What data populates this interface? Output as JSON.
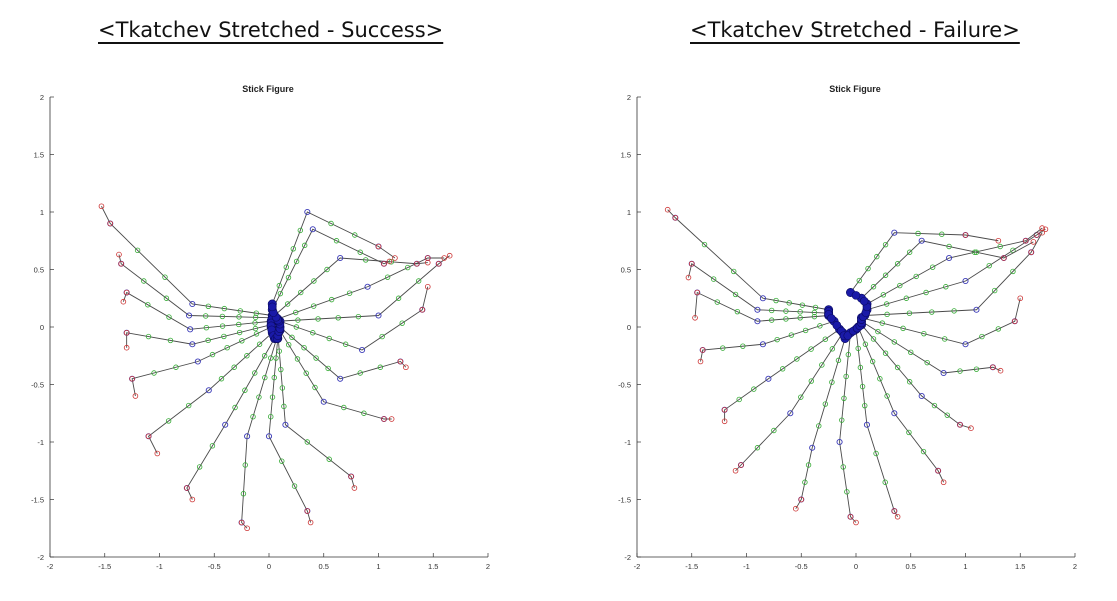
{
  "headings": {
    "left": "<Tkatchev Stretched - Success>",
    "right": "<Tkatchev Stretched - Failure>"
  },
  "colors": {
    "limb_line": "#4a4a4a",
    "head_nodes": "#cc3333",
    "joint_nodes": "#3a3ab8",
    "mid_nodes": "#33aa33",
    "center_fill": "#1a1aa8",
    "axis": "#333333"
  },
  "chart_data": [
    {
      "type": "scatter",
      "title": "Stick Figure",
      "xlabel": "",
      "ylabel": "",
      "xlim": [
        -2,
        2
      ],
      "ylim": [
        -2,
        2
      ],
      "xticks": [
        "-2",
        "-1.5",
        "-1",
        "-0.5",
        "0",
        "0.5",
        "1",
        "1.5",
        "2"
      ],
      "yticks": [
        "2",
        "1.5",
        "1",
        "0.5",
        "0",
        "-0.5",
        "-1",
        "-1.5",
        "-2"
      ],
      "grid": false,
      "frames": [
        [
          [
            0.03,
            0.1
          ],
          [
            -0.7,
            0.2
          ],
          [
            -1.45,
            0.9
          ],
          [
            -1.53,
            1.05
          ]
        ],
        [
          [
            0.03,
            0.08
          ],
          [
            -0.73,
            0.1
          ],
          [
            -1.35,
            0.55
          ],
          [
            -1.37,
            0.63
          ]
        ],
        [
          [
            0.02,
            0.05
          ],
          [
            -0.72,
            -0.02
          ],
          [
            -1.3,
            0.3
          ],
          [
            -1.33,
            0.22
          ]
        ],
        [
          [
            0.02,
            0.02
          ],
          [
            -0.7,
            -0.15
          ],
          [
            -1.3,
            -0.05
          ],
          [
            -1.3,
            -0.18
          ]
        ],
        [
          [
            0.02,
            0.0
          ],
          [
            -0.65,
            -0.3
          ],
          [
            -1.25,
            -0.45
          ],
          [
            -1.22,
            -0.6
          ]
        ],
        [
          [
            0.03,
            -0.05
          ],
          [
            -0.55,
            -0.55
          ],
          [
            -1.1,
            -0.95
          ],
          [
            -1.02,
            -1.1
          ]
        ],
        [
          [
            0.05,
            -0.1
          ],
          [
            -0.4,
            -0.85
          ],
          [
            -0.75,
            -1.4
          ],
          [
            -0.7,
            -1.5
          ]
        ],
        [
          [
            0.07,
            -0.1
          ],
          [
            -0.2,
            -0.95
          ],
          [
            -0.25,
            -1.7
          ],
          [
            -0.2,
            -1.75
          ]
        ],
        [
          [
            0.08,
            -0.1
          ],
          [
            0.0,
            -0.95
          ],
          [
            0.35,
            -1.6
          ],
          [
            0.38,
            -1.7
          ]
        ],
        [
          [
            0.08,
            -0.05
          ],
          [
            0.15,
            -0.85
          ],
          [
            0.75,
            -1.3
          ],
          [
            0.78,
            -1.4
          ]
        ],
        [
          [
            0.1,
            -0.03
          ],
          [
            0.5,
            -0.65
          ],
          [
            1.05,
            -0.8
          ],
          [
            1.12,
            -0.8
          ]
        ],
        [
          [
            0.1,
            0.0
          ],
          [
            0.65,
            -0.45
          ],
          [
            1.2,
            -0.3
          ],
          [
            1.25,
            -0.35
          ]
        ],
        [
          [
            0.1,
            0.05
          ],
          [
            0.85,
            -0.2
          ],
          [
            1.4,
            0.15
          ],
          [
            1.45,
            0.35
          ]
        ],
        [
          [
            0.08,
            0.05
          ],
          [
            1.0,
            0.1
          ],
          [
            1.55,
            0.55
          ],
          [
            1.65,
            0.62
          ]
        ],
        [
          [
            0.08,
            0.07
          ],
          [
            0.9,
            0.35
          ],
          [
            1.45,
            0.6
          ],
          [
            1.6,
            0.6
          ]
        ],
        [
          [
            0.05,
            0.1
          ],
          [
            0.65,
            0.6
          ],
          [
            1.35,
            0.55
          ],
          [
            1.45,
            0.56
          ]
        ],
        [
          [
            0.03,
            0.15
          ],
          [
            0.4,
            0.85
          ],
          [
            1.05,
            0.55
          ],
          [
            1.1,
            0.57
          ]
        ],
        [
          [
            0.03,
            0.2
          ],
          [
            0.35,
            1.0
          ],
          [
            1.0,
            0.7
          ],
          [
            1.15,
            0.6
          ]
        ]
      ]
    },
    {
      "type": "scatter",
      "title": "Stick Figure",
      "xlabel": "",
      "ylabel": "",
      "xlim": [
        -2,
        2
      ],
      "ylim": [
        -2,
        2
      ],
      "xticks": [
        "-2",
        "-1.5",
        "-1",
        "-0.5",
        "0",
        "0.5",
        "1",
        "1.5",
        "2"
      ],
      "yticks": [
        "2",
        "1.5",
        "1",
        "0.5",
        "0",
        "-0.5",
        "-1",
        "-1.5",
        "-2"
      ],
      "grid": false,
      "frames": [
        [
          [
            -0.25,
            0.15
          ],
          [
            -0.85,
            0.25
          ],
          [
            -1.65,
            0.95
          ],
          [
            -1.72,
            1.02
          ]
        ],
        [
          [
            -0.25,
            0.12
          ],
          [
            -0.9,
            0.15
          ],
          [
            -1.5,
            0.55
          ],
          [
            -1.53,
            0.43
          ]
        ],
        [
          [
            -0.25,
            0.1
          ],
          [
            -0.9,
            0.05
          ],
          [
            -1.45,
            0.3
          ],
          [
            -1.47,
            0.08
          ]
        ],
        [
          [
            -0.2,
            0.05
          ],
          [
            -0.85,
            -0.15
          ],
          [
            -1.4,
            -0.2
          ],
          [
            -1.42,
            -0.3
          ]
        ],
        [
          [
            -0.15,
            -0.02
          ],
          [
            -0.8,
            -0.45
          ],
          [
            -1.2,
            -0.72
          ],
          [
            -1.2,
            -0.82
          ]
        ],
        [
          [
            -0.12,
            -0.05
          ],
          [
            -0.6,
            -0.75
          ],
          [
            -1.05,
            -1.2
          ],
          [
            -1.1,
            -1.25
          ]
        ],
        [
          [
            -0.1,
            -0.1
          ],
          [
            -0.4,
            -1.05
          ],
          [
            -0.5,
            -1.5
          ],
          [
            -0.55,
            -1.58
          ]
        ],
        [
          [
            -0.05,
            -0.05
          ],
          [
            -0.15,
            -1.0
          ],
          [
            -0.05,
            -1.65
          ],
          [
            0.0,
            -1.7
          ]
        ],
        [
          [
            0.0,
            -0.02
          ],
          [
            0.1,
            -0.85
          ],
          [
            0.35,
            -1.6
          ],
          [
            0.38,
            -1.65
          ]
        ],
        [
          [
            0.02,
            0.0
          ],
          [
            0.35,
            -0.75
          ],
          [
            0.75,
            -1.25
          ],
          [
            0.8,
            -1.35
          ]
        ],
        [
          [
            0.05,
            0.02
          ],
          [
            0.6,
            -0.6
          ],
          [
            0.95,
            -0.85
          ],
          [
            1.05,
            -0.88
          ]
        ],
        [
          [
            0.05,
            0.05
          ],
          [
            0.8,
            -0.4
          ],
          [
            1.25,
            -0.35
          ],
          [
            1.32,
            -0.38
          ]
        ],
        [
          [
            0.05,
            0.08
          ],
          [
            1.0,
            -0.15
          ],
          [
            1.45,
            0.05
          ],
          [
            1.5,
            0.25
          ]
        ],
        [
          [
            0.08,
            0.1
          ],
          [
            1.1,
            0.15
          ],
          [
            1.6,
            0.65
          ],
          [
            1.7,
            0.82
          ]
        ],
        [
          [
            0.1,
            0.15
          ],
          [
            1.0,
            0.4
          ],
          [
            1.65,
            0.8
          ],
          [
            1.73,
            0.85
          ]
        ],
        [
          [
            0.1,
            0.2
          ],
          [
            0.85,
            0.6
          ],
          [
            1.55,
            0.75
          ],
          [
            1.7,
            0.86
          ]
        ],
        [
          [
            0.05,
            0.25
          ],
          [
            0.6,
            0.75
          ],
          [
            1.35,
            0.6
          ],
          [
            1.62,
            0.74
          ]
        ],
        [
          [
            -0.05,
            0.3
          ],
          [
            0.35,
            0.82
          ],
          [
            1.0,
            0.8
          ],
          [
            1.3,
            0.75
          ]
        ]
      ]
    }
  ]
}
